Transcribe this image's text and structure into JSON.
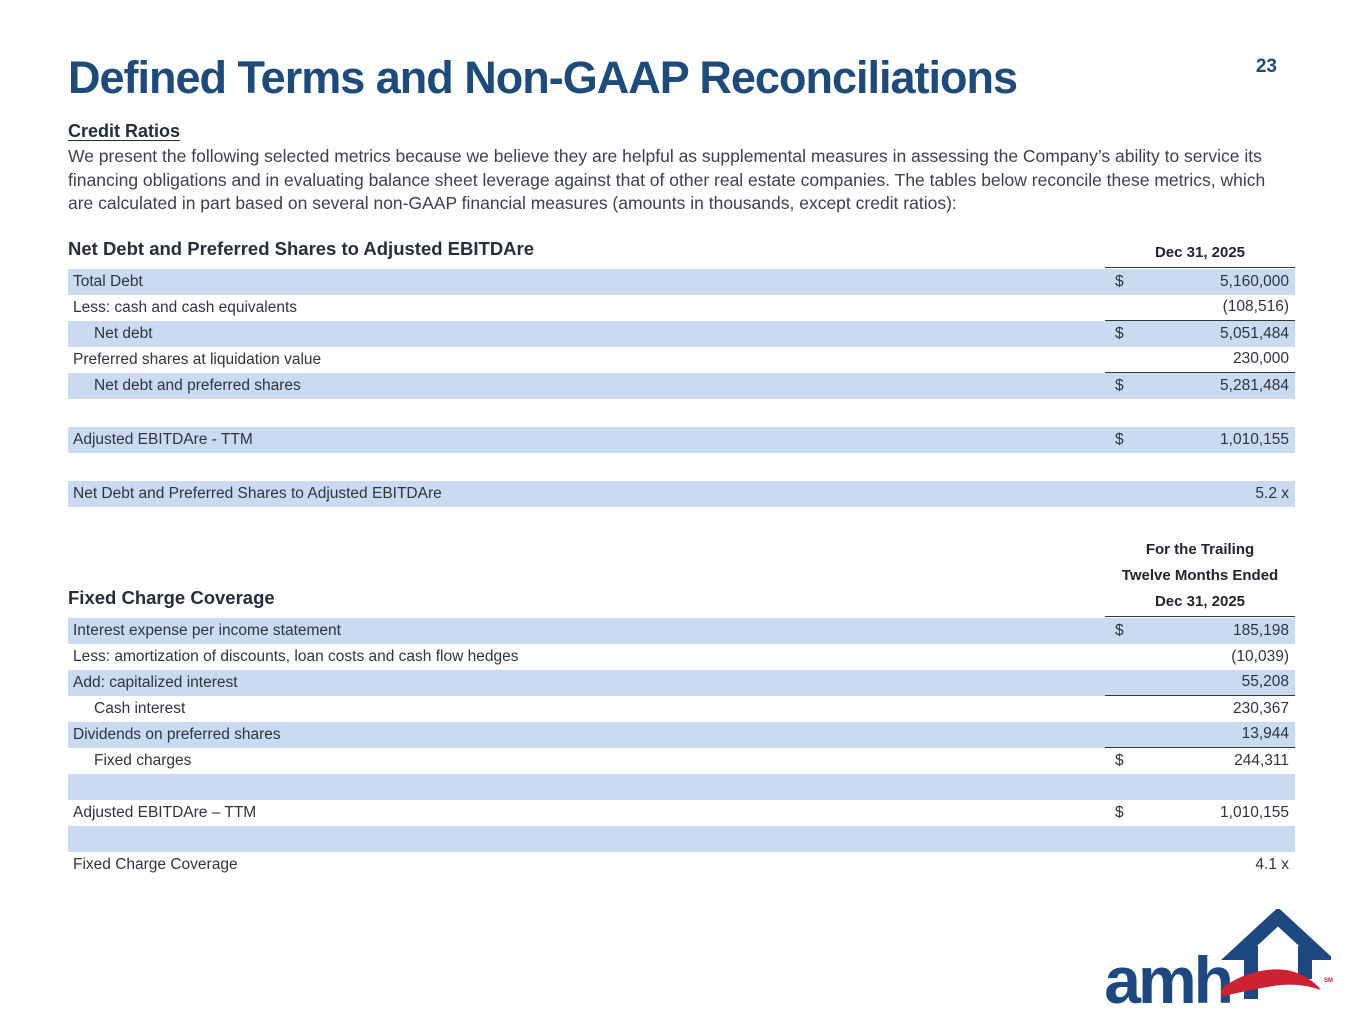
{
  "page": {
    "title": "Defined Terms and Non-GAAP Reconciliations",
    "page_number": "23"
  },
  "intro": {
    "heading": "Credit Ratios",
    "body": "We present the following selected metrics because we believe they are helpful as supplemental measures in assessing the Company’s ability to service its financing obligations and in evaluating balance sheet leverage against that of other real estate companies. The tables below reconcile these metrics, which are calculated in part based on several non-GAAP financial measures (amounts in thousands, except credit ratios):"
  },
  "tables": [
    {
      "title": "Net Debt and Preferred Shares to Adjusted EBITDAre",
      "col_header_lines": [
        "Dec 31, 2025"
      ],
      "rows": [
        {
          "label": "Total Debt",
          "dollar": "$",
          "value": "5,160,000",
          "shaded": true
        },
        {
          "label": "Less: cash and cash equivalents",
          "value": "(108,516)",
          "underline": true
        },
        {
          "label": "Net debt",
          "dollar": "$",
          "value": "5,051,484",
          "shaded": true,
          "indent": true
        },
        {
          "label": "Preferred shares at liquidation value",
          "value": "230,000",
          "underline": true
        },
        {
          "label": "Net debt and preferred shares",
          "dollar": "$",
          "value": "5,281,484",
          "shaded": true,
          "indent": true
        },
        {
          "spacer": true
        },
        {
          "label": "Adjusted EBITDAre - TTM",
          "dollar": "$",
          "value": "1,010,155",
          "shaded": true
        },
        {
          "spacer": true
        },
        {
          "label": "Net Debt and Preferred Shares to Adjusted EBITDAre",
          "value": "5.2 x",
          "shaded": true
        }
      ]
    },
    {
      "title": "Fixed Charge Coverage",
      "col_header_lines": [
        "For the Trailing",
        "Twelve Months Ended",
        "Dec 31, 2025"
      ],
      "rows": [
        {
          "label": "Interest expense per income statement",
          "dollar": "$",
          "value": "185,198",
          "shaded": true
        },
        {
          "label": "Less: amortization of discounts, loan costs and cash flow hedges",
          "value": "(10,039)"
        },
        {
          "label": "Add: capitalized interest",
          "value": "55,208",
          "shaded": true,
          "underline": true
        },
        {
          "label": "Cash interest",
          "value": "230,367",
          "indent": true
        },
        {
          "label": "Dividends on preferred shares",
          "value": "13,944",
          "shaded": true,
          "underline": true
        },
        {
          "label": "Fixed charges",
          "dollar": "$",
          "value": "244,311",
          "indent": true
        },
        {
          "label": "",
          "value": "",
          "shaded": true
        },
        {
          "label": "Adjusted EBITDAre – TTM",
          "dollar": "$",
          "value": "1,010,155"
        },
        {
          "label": "",
          "value": "",
          "shaded": true
        },
        {
          "label": "Fixed Charge Coverage",
          "value": "4.1 x"
        }
      ]
    }
  ],
  "logo": {
    "text": "amh",
    "sm_mark": "SM"
  },
  "colors": {
    "title_blue": "#1e4b7a",
    "row_blue": "#c9daf1",
    "heading_dark": "#232f3b",
    "body_text": "#39424c",
    "rule_line": "#33383e",
    "logo_blue": "#1d4880",
    "logo_red": "#cc2131"
  }
}
